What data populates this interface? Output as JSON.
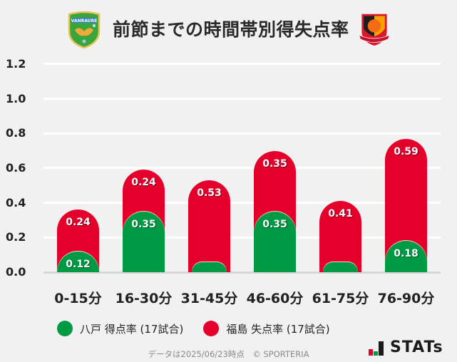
{
  "header": {
    "title": "前節までの時間帯別得失点率",
    "left_logo": "vanraure-hachinohe-crest",
    "right_logo": "fukushima-united-fc-crest"
  },
  "colors": {
    "background": "#f1f1f1",
    "green": "#009a44",
    "red": "#e4002b",
    "grid": "#ffffff",
    "baseline": "#d6d6d6"
  },
  "chart_data": {
    "type": "bar",
    "stacked": true,
    "title": "前節までの時間帯別得失点率",
    "xlabel": "",
    "ylabel": "",
    "ylim": [
      0,
      1.2
    ],
    "yticks": [
      "1.2",
      "1.0",
      "0.8",
      "0.6",
      "0.4",
      "0.2",
      "0.0"
    ],
    "grid": true,
    "legend_position": "bottom",
    "categories": [
      "0-15分",
      "16-30分",
      "31-45分",
      "46-60分",
      "61-75分",
      "76-90分"
    ],
    "series": [
      {
        "name": "八戸 得点率 (17試合)",
        "color": "#009a44",
        "values": [
          0.12,
          0.35,
          0,
          0.35,
          0,
          0.18
        ],
        "labels": [
          "0.12",
          "0.35",
          "",
          "0.35",
          "",
          "0.18"
        ]
      },
      {
        "name": "福島 失点率 (17試合)",
        "color": "#e4002b",
        "values": [
          0.24,
          0.24,
          0.53,
          0.35,
          0.41,
          0.59
        ],
        "labels": [
          "0.24",
          "0.24",
          "0.53",
          "0.35",
          "0.41",
          "0.59"
        ]
      }
    ]
  },
  "legend": {
    "items": [
      {
        "label": "八戸 得点率 (17試合)",
        "color": "#009a44"
      },
      {
        "label": "福島 失点率 (17試合)",
        "color": "#e4002b"
      }
    ]
  },
  "footer": {
    "note": "データは2025/06/23時点　© SPORTERIA",
    "brand": "STATs"
  }
}
